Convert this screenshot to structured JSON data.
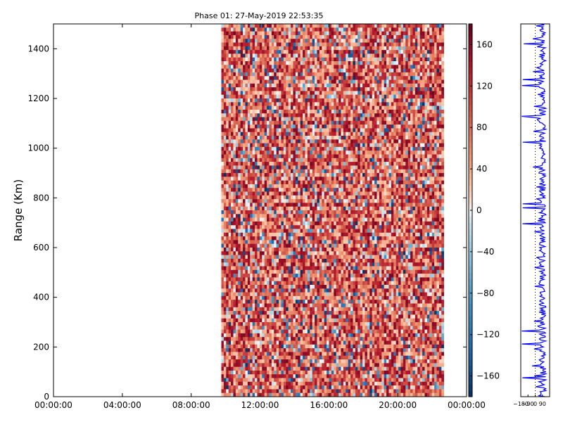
{
  "chart_data": [
    {
      "type": "heatmap",
      "title": "Phase 01: 27-May-2019 22:53:35",
      "xlabel": "",
      "ylabel": "Range (Km)",
      "x_tick_labels": [
        "00:00:00",
        "04:00:00",
        "08:00:00",
        "12:00:00",
        "16:00:00",
        "20:00:00",
        "00:00:00"
      ],
      "x_tick_hours": [
        0,
        4,
        8,
        12,
        16,
        20,
        24
      ],
      "xlim_hours": [
        0,
        24
      ],
      "y_ticks": [
        0,
        200,
        400,
        600,
        800,
        1000,
        1200,
        1400
      ],
      "ylim": [
        0,
        1500
      ],
      "data_extent_hours": [
        9.75,
        22.6
      ],
      "value_range": [
        -180,
        180
      ],
      "colormap": "RdBu_r",
      "note_values": "noisy phase values, predominantly positive (+20 to +160)",
      "colorbar": {
        "ticks": [
          -160,
          -120,
          -80,
          -40,
          0,
          40,
          80,
          120,
          160
        ],
        "tick_labels": [
          "−160",
          "−120",
          "−80",
          "−40",
          "0",
          "40",
          "80",
          "120",
          "160"
        ],
        "range": [
          -180,
          180
        ]
      }
    },
    {
      "type": "line",
      "title": "",
      "xlabel": "",
      "ylabel": "",
      "xlim": [
        -180,
        180
      ],
      "x_tick_labels": [
        "−180",
        "−90",
        "0",
        "90"
      ],
      "x_ticks": [
        -180,
        -90,
        0,
        90
      ],
      "ylim": [
        0,
        1500
      ],
      "series_color": "#0000ff",
      "note_values": "phase profile vs range, mostly near +90 with spikes toward −180"
    }
  ]
}
